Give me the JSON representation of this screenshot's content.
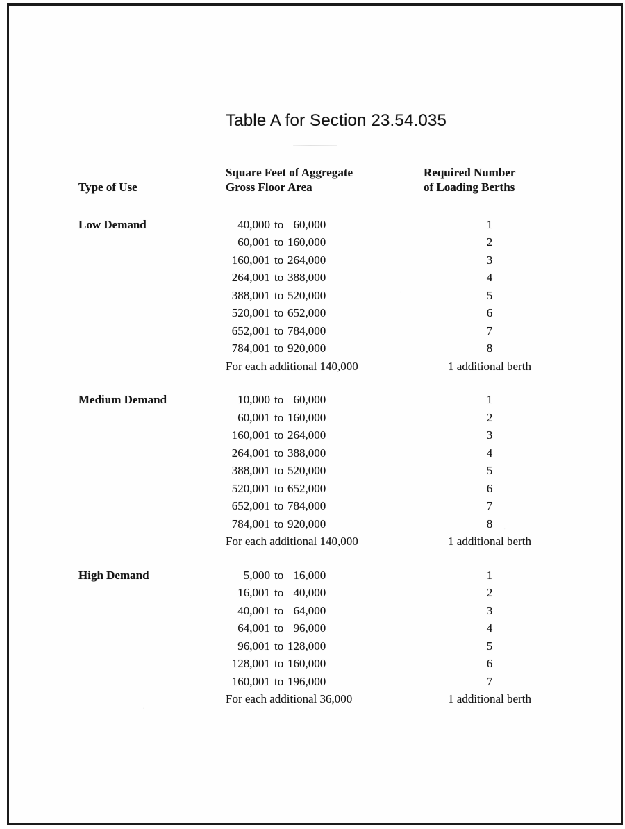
{
  "page": {
    "title": "Table A for Section 23.54.035"
  },
  "table": {
    "headers": {
      "type_of_use": "Type of Use",
      "sqft_line1": "Square Feet of Aggregate",
      "sqft_line2": "Gross Floor Area",
      "berths_line1": "Required Number",
      "berths_line2": "of Loading Berths"
    },
    "range_separator": "to",
    "sections": [
      {
        "type_of_use": "Low Demand",
        "rows": [
          {
            "from": "40,000",
            "to": "60,000",
            "berths": "1"
          },
          {
            "from": "60,001",
            "to": "160,000",
            "berths": "2"
          },
          {
            "from": "160,001",
            "to": "264,000",
            "berths": "3"
          },
          {
            "from": "264,001",
            "to": "388,000",
            "berths": "4"
          },
          {
            "from": "388,001",
            "to": "520,000",
            "berths": "5"
          },
          {
            "from": "520,001",
            "to": "652,000",
            "berths": "6"
          },
          {
            "from": "652,001",
            "to": "784,000",
            "berths": "7"
          },
          {
            "from": "784,001",
            "to": "920,000",
            "berths": "8"
          },
          {
            "note": "For each additional 140,000",
            "berths": "1 additional berth"
          }
        ]
      },
      {
        "type_of_use": "Medium Demand",
        "rows": [
          {
            "from": "10,000",
            "to": "60,000",
            "berths": "1"
          },
          {
            "from": "60,001",
            "to": "160,000",
            "berths": "2"
          },
          {
            "from": "160,001",
            "to": "264,000",
            "berths": "3"
          },
          {
            "from": "264,001",
            "to": "388,000",
            "berths": "4"
          },
          {
            "from": "388,001",
            "to": "520,000",
            "berths": "5"
          },
          {
            "from": "520,001",
            "to": "652,000",
            "berths": "6"
          },
          {
            "from": "652,001",
            "to": "784,000",
            "berths": "7"
          },
          {
            "from": "784,001",
            "to": "920,000",
            "berths": "8"
          },
          {
            "note": "For each additional 140,000",
            "berths": "1 additional berth"
          }
        ]
      },
      {
        "type_of_use": "High Demand",
        "rows": [
          {
            "from": "5,000",
            "to": "16,000",
            "berths": "1"
          },
          {
            "from": "16,001",
            "to": "40,000",
            "berths": "2"
          },
          {
            "from": "40,001",
            "to": "64,000",
            "berths": "3"
          },
          {
            "from": "64,001",
            "to": "96,000",
            "berths": "4"
          },
          {
            "from": "96,001",
            "to": "128,000",
            "berths": "5"
          },
          {
            "from": "128,001",
            "to": "160,000",
            "berths": "6"
          },
          {
            "from": "160,001",
            "to": "196,000",
            "berths": "7"
          },
          {
            "note": "For each additional 36,000",
            "berths": "1 additional berth"
          }
        ]
      }
    ]
  }
}
